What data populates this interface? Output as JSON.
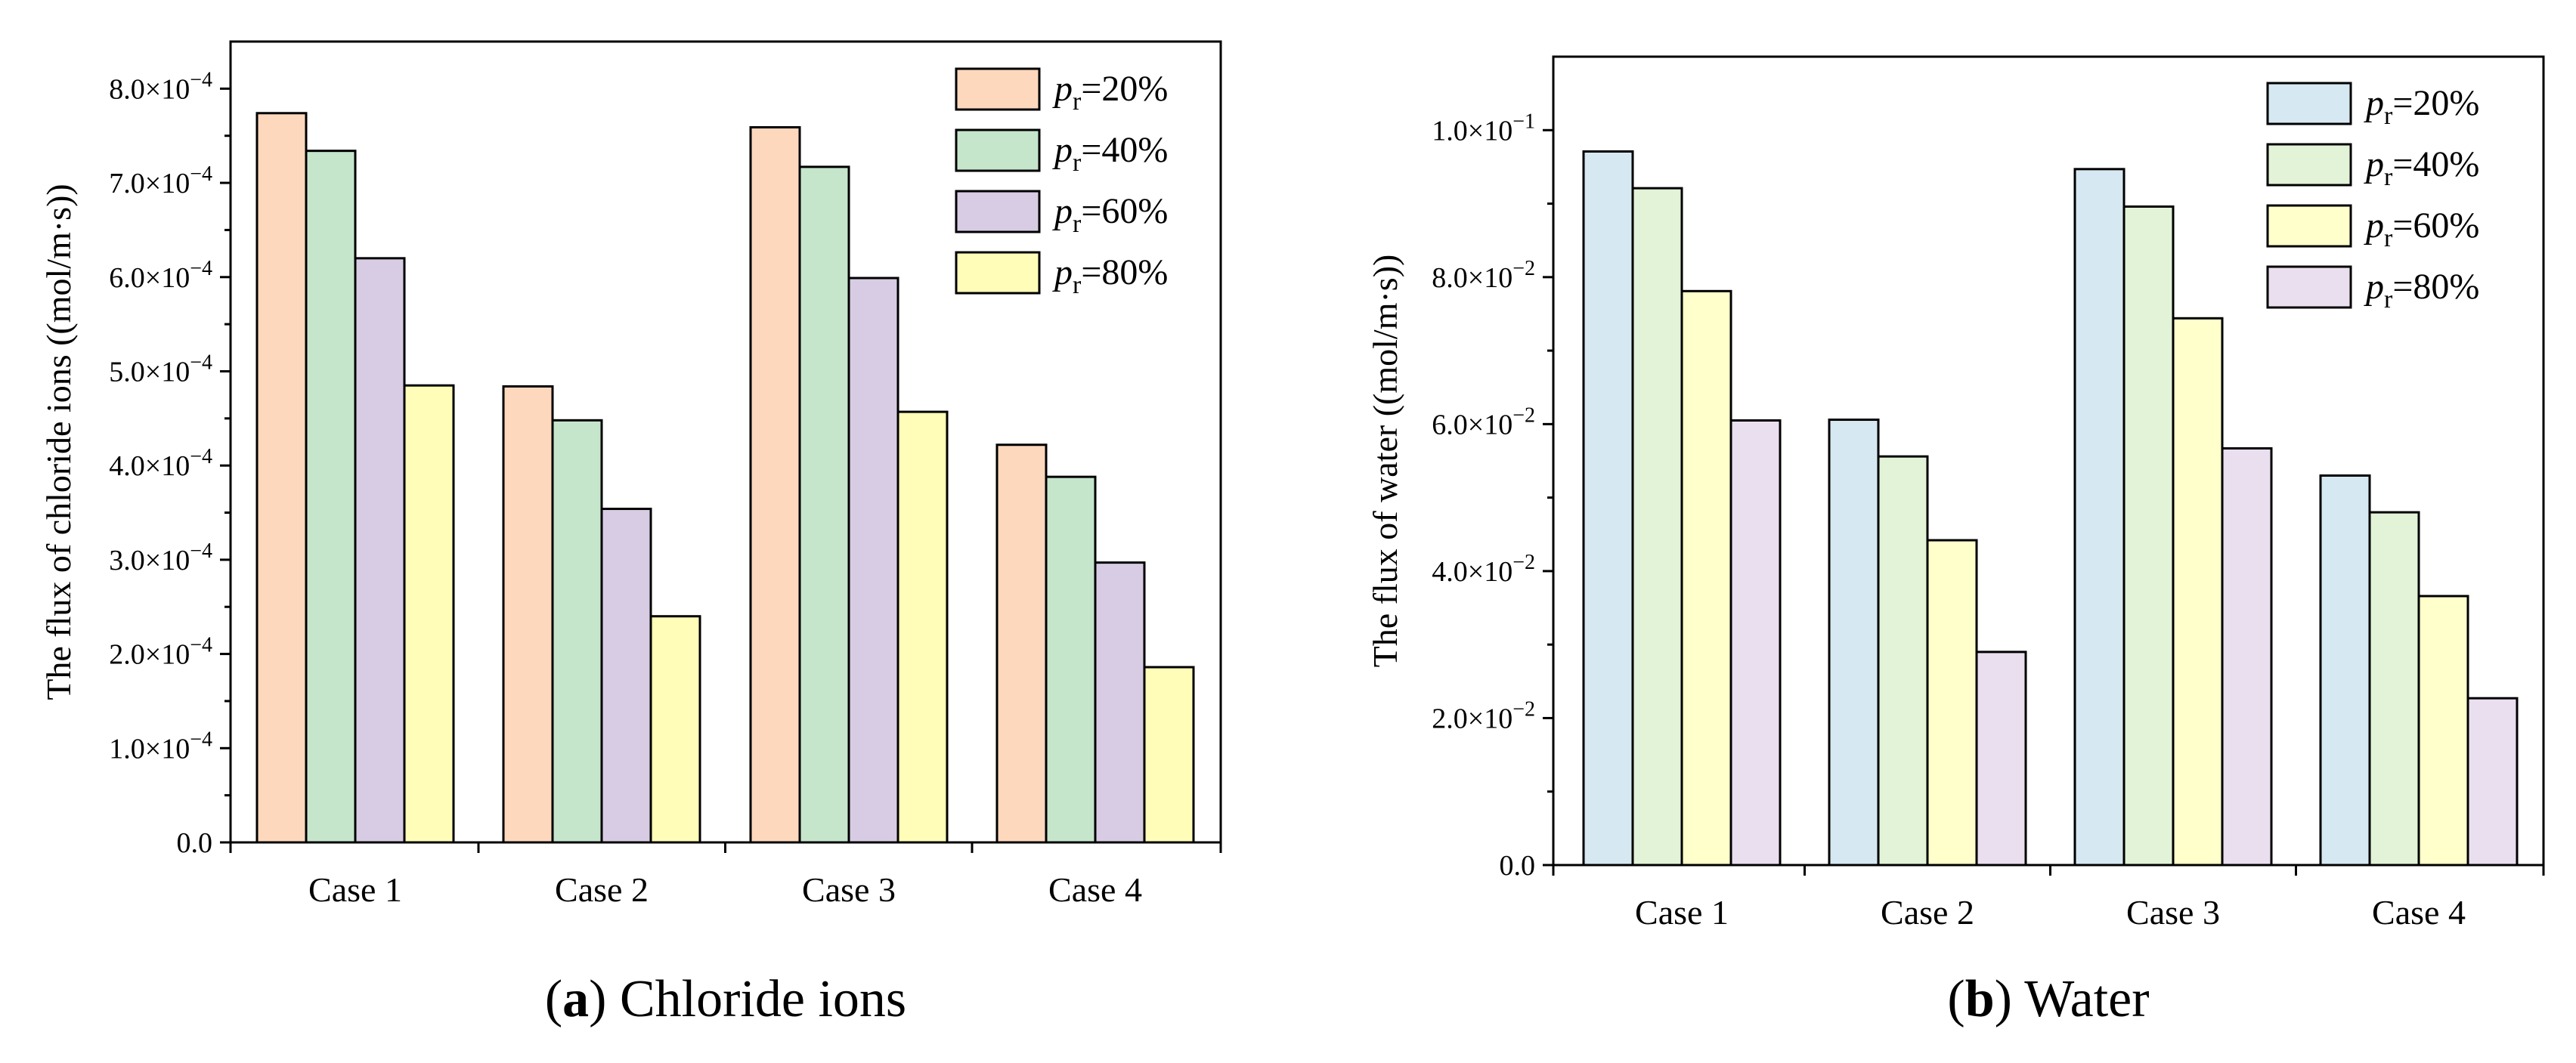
{
  "chart_data": [
    {
      "type": "bar",
      "title": "",
      "caption_letter": "a",
      "caption_text": " Chloride ions",
      "xlabel": "",
      "ylabel_main": "The flux of chloride ions",
      "ylabel_unit": "((mol/m·s))",
      "categories": [
        "Case 1",
        "Case 2",
        "Case 3",
        "Case 4"
      ],
      "ylim": [
        0,
        0.00085
      ],
      "ticks": [
        0,
        0.0001,
        0.0002,
        0.0003,
        0.0004,
        0.0005,
        0.0006,
        0.0007,
        0.0008
      ],
      "tick_labels": [
        {
          "mantissa": "0.0",
          "exp": ""
        },
        {
          "mantissa": "1.0×10",
          "exp": "−4"
        },
        {
          "mantissa": "2.0×10",
          "exp": "−4"
        },
        {
          "mantissa": "3.0×10",
          "exp": "−4"
        },
        {
          "mantissa": "4.0×10",
          "exp": "−4"
        },
        {
          "mantissa": "5.0×10",
          "exp": "−4"
        },
        {
          "mantissa": "6.0×10",
          "exp": "−4"
        },
        {
          "mantissa": "7.0×10",
          "exp": "−4"
        },
        {
          "mantissa": "8.0×10",
          "exp": "−4"
        }
      ],
      "legend_position": "top-right",
      "series": [
        {
          "name": "20%",
          "color": "#FDD8BD",
          "values": [
            0.000774,
            0.000484,
            0.000759,
            0.000422
          ]
        },
        {
          "name": "40%",
          "color": "#C6E6CC",
          "values": [
            0.000734,
            0.000448,
            0.000717,
            0.000388
          ]
        },
        {
          "name": "60%",
          "color": "#D8CCE4",
          "values": [
            0.00062,
            0.000354,
            0.000599,
            0.000297
          ]
        },
        {
          "name": "80%",
          "color": "#FFFDB8",
          "values": [
            0.000485,
            0.00024,
            0.000457,
            0.000186
          ]
        }
      ]
    },
    {
      "type": "bar",
      "title": "",
      "caption_letter": "b",
      "caption_text": " Water",
      "xlabel": "",
      "ylabel_main": "The flux of water",
      "ylabel_unit": "((mol/m·s))",
      "categories": [
        "Case 1",
        "Case 2",
        "Case 3",
        "Case 4"
      ],
      "ylim": [
        0,
        0.11
      ],
      "ticks": [
        0,
        0.02,
        0.04,
        0.06,
        0.08,
        0.1
      ],
      "tick_labels": [
        {
          "mantissa": "0.0",
          "exp": ""
        },
        {
          "mantissa": "2.0×10",
          "exp": "−2"
        },
        {
          "mantissa": "4.0×10",
          "exp": "−2"
        },
        {
          "mantissa": "6.0×10",
          "exp": "−2"
        },
        {
          "mantissa": "8.0×10",
          "exp": "−2"
        },
        {
          "mantissa": "1.0×10",
          "exp": "−1"
        }
      ],
      "legend_position": "top-right",
      "series": [
        {
          "name": "20%",
          "color": "#D6E8F2",
          "values": [
            0.0971,
            0.0606,
            0.0947,
            0.053
          ]
        },
        {
          "name": "40%",
          "color": "#E2F3D8",
          "values": [
            0.0921,
            0.0556,
            0.0896,
            0.048
          ]
        },
        {
          "name": "60%",
          "color": "#FFFFCC",
          "values": [
            0.0781,
            0.0442,
            0.0744,
            0.0366
          ]
        },
        {
          "name": "80%",
          "color": "#EADFEE",
          "values": [
            0.0605,
            0.029,
            0.0567,
            0.0227
          ]
        }
      ]
    }
  ],
  "legend_symbol": {
    "base": "p",
    "sub": "r",
    "eq": "="
  }
}
